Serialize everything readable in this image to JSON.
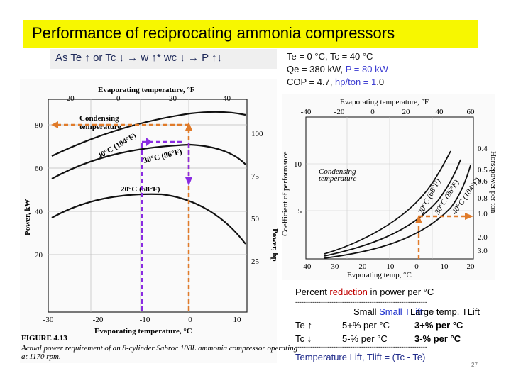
{
  "slide": {
    "title": "Performance of reciprocating ammonia compressors",
    "subtitle": "As Te ↑ or Tc ↓ → w ↑* wc ↓ → P ↑↓",
    "page_number": "27"
  },
  "info": {
    "line1": "Te = 0 °C, Tc = 40 °C",
    "line2_prefix": "Qe = 380 kW, ",
    "line2_highlight": "P = 80 kW",
    "line3_prefix": "COP = 4.7, ",
    "line3_highlight": "hp/ton = 1",
    "line3_suffix": ".0"
  },
  "left_figure": {
    "top_axis_title": "Evaporating temperature, °F",
    "top_ticks": [
      "-20",
      "0",
      "20",
      "40"
    ],
    "left_axis_title": "Power, kW",
    "left_ticks": [
      "80",
      "60",
      "40",
      "20"
    ],
    "right_axis_title": "Power, hp",
    "right_ticks": [
      "100",
      "75",
      "50",
      "25"
    ],
    "bottom_ticks": [
      "-30",
      "-20",
      "-10",
      "0",
      "10"
    ],
    "bottom_axis_title": "Evaporating temperature, °C",
    "legend_title_1": "Condensing",
    "legend_title_2": "temperature",
    "curve_labels": [
      "40°C (104°F)",
      "30°C (86°F)",
      "20°C (68°F)"
    ],
    "caption_label": "FIGURE 4.13",
    "caption_line1": "Actual power requirement of an 8-cylinder Sabroc 108L ammonia compressor operating",
    "caption_line2": "at 1170 rpm."
  },
  "right_figure": {
    "top_axis_title": "Evaporating temperature, °F",
    "top_ticks": [
      "-40",
      "-20",
      "0",
      "20",
      "40",
      "60"
    ],
    "left_axis_title": "Coefficient of performance",
    "left_ticks": [
      "10",
      "5"
    ],
    "right_axis_title": "Horsepower per ton",
    "right_ticks": [
      "0.4",
      "0.5",
      "0.6",
      "0.8",
      "1.0",
      "2.0",
      "3.0"
    ],
    "bottom_ticks": [
      "-40",
      "-30",
      "-20",
      "-10",
      "0",
      "10",
      "20"
    ],
    "bottom_axis_title": "Evporating temp, °C",
    "legend_title_1": "Condensing",
    "legend_title_2": "temperature",
    "curve_labels": [
      "20°C (68°F)",
      "30°C (86°F)",
      "40°C (104°F)"
    ]
  },
  "table": {
    "line1_a": "Percent ",
    "line1_b": "reduction",
    "line1_c": " in power per °C",
    "dashes": "--------------------------------------------------------------",
    "col_small": "Small TLift",
    "col_large": "Large temp. TLift",
    "row1_label": "Te ↑",
    "row1_small": "5+% per °C",
    "row1_large": "3+% per °C",
    "row2_label": "Tc ↓",
    "row2_small": "5-% per °C",
    "row2_large": "3-% per °C",
    "footer": "Temperature Lift, Tlift = (Tc - Te)"
  },
  "colors": {
    "title_bg": "#f7f700",
    "subtitle_bg": "#efefef",
    "highlight_blue": "#3b3bd1",
    "arrow_orange": "#e07b2a",
    "arrow_purple": "#8a2be2",
    "reduction_red": "#c00000"
  }
}
